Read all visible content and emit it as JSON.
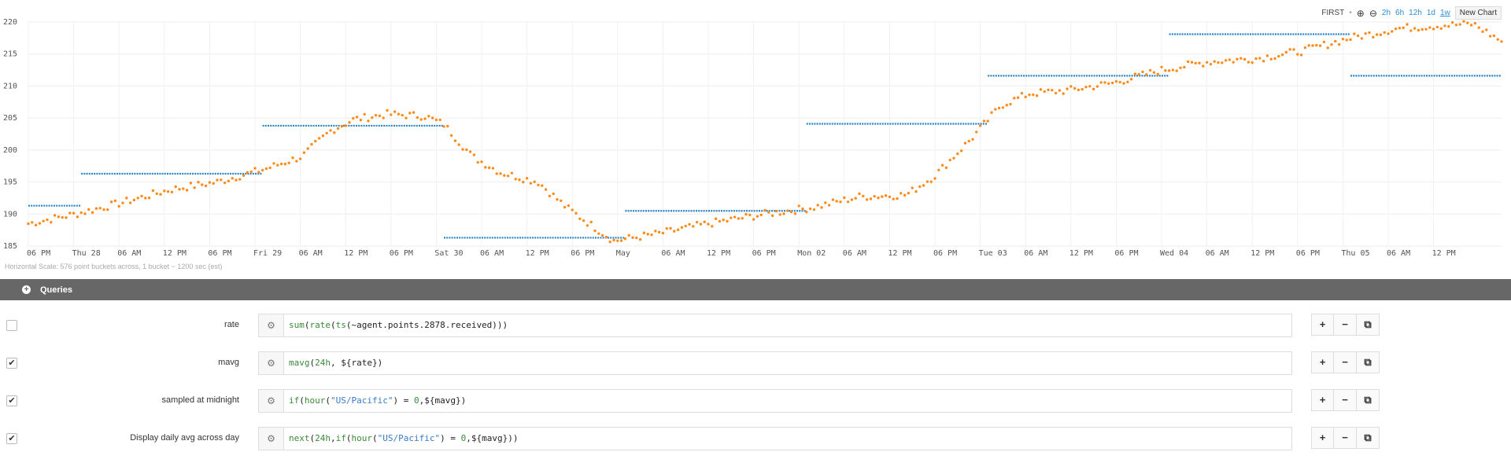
{
  "toolbar": {
    "summary_label": "FIRST",
    "separator": "•",
    "zoom_in": "⊕",
    "zoom_out": "⊖",
    "ranges": [
      "2h",
      "6h",
      "12h",
      "1d",
      "1w"
    ],
    "active_range": "1w",
    "new_chart_label": "New Chart"
  },
  "hscale_note": "Horizontal Scale: 576 point buckets across, 1 bucket ~ 1200 sec (est)",
  "queries_header": {
    "label": "Queries",
    "icon": "plus-circle-icon"
  },
  "queries": [
    {
      "checked": false,
      "check_mark": "",
      "name": "rate",
      "expression": "sum(rate(ts(~agent.points.2878.received)))"
    },
    {
      "checked": true,
      "check_mark": "✔",
      "name": "mavg",
      "expression": "mavg(24h, ${rate})"
    },
    {
      "checked": true,
      "check_mark": "✔",
      "name": "sampled at midnight",
      "expression": "if(hour(\"US/Pacific\") = 0,${mavg})"
    },
    {
      "checked": true,
      "check_mark": "✔",
      "name": "Display daily avg across day",
      "expression": "next(24h,if(hour(\"US/Pacific\") = 0,${mavg}))"
    }
  ],
  "row_buttons": {
    "add": "+",
    "remove": "−",
    "copy": "⧉"
  },
  "gear_icon": "⚙",
  "colors": {
    "orange_series": "#ff8c1a",
    "blue_series": "#2b83c4",
    "link": "#2a8fd3",
    "queries_bar": "#676767"
  },
  "chart_data": {
    "type": "scatter",
    "ylim": [
      185,
      220
    ],
    "yticks": [
      185,
      190,
      195,
      200,
      205,
      210,
      215,
      220
    ],
    "xlim": [
      0,
      1560
    ],
    "xticks": [
      {
        "x": 0,
        "label": "06 PM"
      },
      {
        "x": 48,
        "label": "Thu 28"
      },
      {
        "x": 96,
        "label": "06 AM"
      },
      {
        "x": 144,
        "label": "12 PM"
      },
      {
        "x": 192,
        "label": "06 PM"
      },
      {
        "x": 240,
        "label": "Fri 29"
      },
      {
        "x": 288,
        "label": "06 AM"
      },
      {
        "x": 336,
        "label": "12 PM"
      },
      {
        "x": 384,
        "label": "06 PM"
      },
      {
        "x": 432,
        "label": "Sat 30"
      },
      {
        "x": 480,
        "label": "06 AM"
      },
      {
        "x": 528,
        "label": "12 PM"
      },
      {
        "x": 576,
        "label": "06 PM"
      },
      {
        "x": 624,
        "label": "May"
      },
      {
        "x": 672,
        "label": "06 AM"
      },
      {
        "x": 720,
        "label": "12 PM"
      },
      {
        "x": 768,
        "label": "06 PM"
      },
      {
        "x": 816,
        "label": "Mon 02"
      },
      {
        "x": 864,
        "label": "06 AM"
      },
      {
        "x": 912,
        "label": "12 PM"
      },
      {
        "x": 960,
        "label": "06 PM"
      },
      {
        "x": 1008,
        "label": "Tue 03"
      },
      {
        "x": 1056,
        "label": "06 AM"
      },
      {
        "x": 1104,
        "label": "12 PM"
      },
      {
        "x": 1152,
        "label": "06 PM"
      },
      {
        "x": 1200,
        "label": "Wed 04"
      },
      {
        "x": 1248,
        "label": "06 AM"
      },
      {
        "x": 1296,
        "label": "12 PM"
      },
      {
        "x": 1344,
        "label": "06 PM"
      },
      {
        "x": 1392,
        "label": "Thu 05"
      },
      {
        "x": 1440,
        "label": "06 AM"
      },
      {
        "x": 1488,
        "label": "12 PM"
      }
    ],
    "grid": true,
    "series": [
      {
        "color": "#2b83c4",
        "style": "step",
        "segments": [
          {
            "x0": 0,
            "x1": 56,
            "y": 191.3
          },
          {
            "x0": 56,
            "x1": 248,
            "y": 196.3
          },
          {
            "x0": 248,
            "x1": 440,
            "y": 203.8
          },
          {
            "x0": 440,
            "x1": 632,
            "y": 186.3
          },
          {
            "x0": 632,
            "x1": 824,
            "y": 190.5
          },
          {
            "x0": 824,
            "x1": 1016,
            "y": 204.1
          },
          {
            "x0": 1016,
            "x1": 1208,
            "y": 211.6
          },
          {
            "x0": 1208,
            "x1": 1400,
            "y": 218.1
          },
          {
            "x0": 1400,
            "x1": 1560,
            "y": 211.6
          }
        ]
      },
      {
        "color": "#ff8c1a",
        "style": "scatter",
        "knots": [
          {
            "x": 0,
            "y": 188.5
          },
          {
            "x": 50,
            "y": 190.0
          },
          {
            "x": 100,
            "y": 191.8
          },
          {
            "x": 150,
            "y": 193.8
          },
          {
            "x": 200,
            "y": 195.0
          },
          {
            "x": 250,
            "y": 197.0
          },
          {
            "x": 290,
            "y": 199.0
          },
          {
            "x": 320,
            "y": 203.0
          },
          {
            "x": 345,
            "y": 204.8
          },
          {
            "x": 380,
            "y": 205.6
          },
          {
            "x": 420,
            "y": 205.3
          },
          {
            "x": 440,
            "y": 204.0
          },
          {
            "x": 470,
            "y": 199.0
          },
          {
            "x": 500,
            "y": 196.5
          },
          {
            "x": 540,
            "y": 195.0
          },
          {
            "x": 570,
            "y": 191.0
          },
          {
            "x": 620,
            "y": 185.8
          },
          {
            "x": 670,
            "y": 187.0
          },
          {
            "x": 720,
            "y": 188.5
          },
          {
            "x": 780,
            "y": 190.0
          },
          {
            "x": 830,
            "y": 191.0
          },
          {
            "x": 880,
            "y": 192.7
          },
          {
            "x": 930,
            "y": 193.0
          },
          {
            "x": 960,
            "y": 196.0
          },
          {
            "x": 1000,
            "y": 202.0
          },
          {
            "x": 1030,
            "y": 207.0
          },
          {
            "x": 1060,
            "y": 208.8
          },
          {
            "x": 1100,
            "y": 209.3
          },
          {
            "x": 1150,
            "y": 210.5
          },
          {
            "x": 1200,
            "y": 212.5
          },
          {
            "x": 1250,
            "y": 213.8
          },
          {
            "x": 1300,
            "y": 214.3
          },
          {
            "x": 1350,
            "y": 215.5
          },
          {
            "x": 1400,
            "y": 217.5
          },
          {
            "x": 1450,
            "y": 219.0
          },
          {
            "x": 1500,
            "y": 219.5
          },
          {
            "x": 1530,
            "y": 219.7
          },
          {
            "x": 1560,
            "y": 217.0
          }
        ]
      }
    ]
  }
}
